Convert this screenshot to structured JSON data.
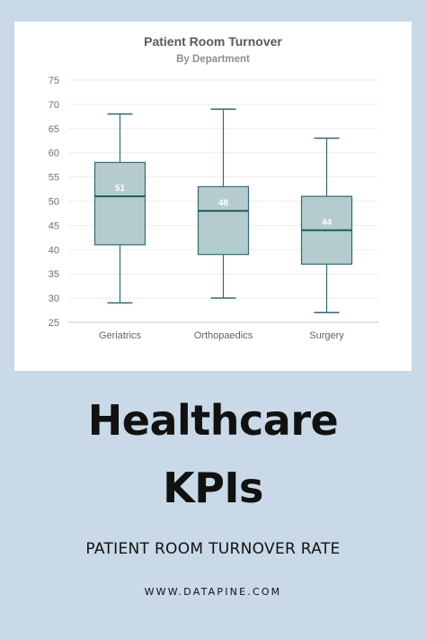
{
  "chart_data": {
    "type": "boxplot",
    "title": "Patient Room Turnover",
    "subtitle": "By Department",
    "ylim": [
      25,
      75
    ],
    "yticks": [
      25,
      30,
      35,
      40,
      45,
      50,
      55,
      60,
      65,
      70,
      75
    ],
    "grid": true,
    "categories": [
      "Geriatrics",
      "Orthopaedics",
      "Surgery"
    ],
    "boxes": [
      {
        "category": "Geriatrics",
        "min": 29,
        "q1": 41,
        "median": 51,
        "q3": 58,
        "max": 68,
        "label": "51"
      },
      {
        "category": "Orthopaedics",
        "min": 30,
        "q1": 39,
        "median": 48,
        "q3": 53,
        "max": 69,
        "label": "48"
      },
      {
        "category": "Surgery",
        "min": 27,
        "q1": 37,
        "median": 44,
        "q3": 51,
        "max": 63,
        "label": "44"
      }
    ],
    "colors": {
      "box_fill": "#b5cccf",
      "box_stroke": "#2f6c72",
      "median": "#1e5a60",
      "grid": "#eeeeee"
    }
  },
  "poster": {
    "heading_line1": "Healthcare",
    "heading_line2": "KPIs",
    "subtitle": "PATIENT ROOM TURNOVER RATE",
    "website": "WWW.DATAPINE.COM"
  },
  "colors": {
    "background": "#c9d9e8",
    "card": "#ffffff",
    "text": "#111111"
  }
}
